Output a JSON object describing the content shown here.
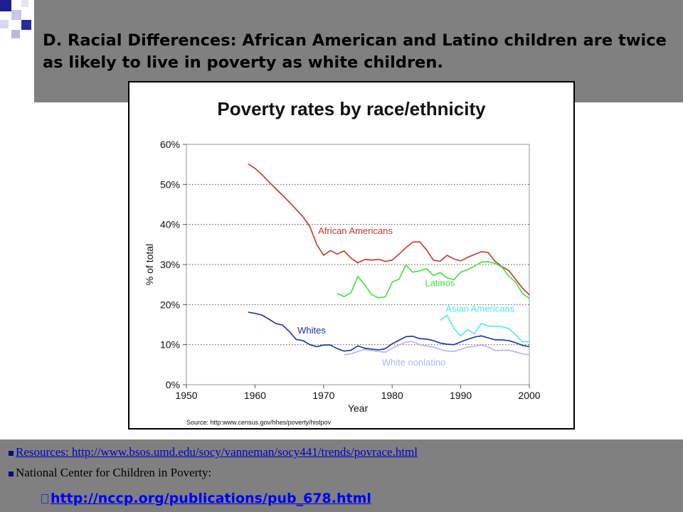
{
  "slide": {
    "title": "D.  Racial Differences: African American and Latino children are twice as likely to live in poverty as white children.",
    "bullets": [
      {
        "text": "Resources:  http://www.bsos.umd.edu/socy/vanneman/socy441/trends/povrace.html"
      },
      {
        "text": "National Center for Children in Poverty:"
      }
    ],
    "sub_bullet": {
      "text": "http://nccp.org/publications/pub_678.html"
    }
  },
  "colors": {
    "header_band": "#808080",
    "african_americans": "#c0392b",
    "latinos": "#44dd44",
    "asian_americans": "#55e6e6",
    "whites": "#1f2fa0",
    "white_nonlatino": "#b4b4ee",
    "link": "#0000ee"
  },
  "chart_data": {
    "type": "line",
    "title": "Poverty rates by race/ethnicity",
    "xlabel": "Year",
    "ylabel": "% of total",
    "source": "Source:  http:www.census.gov/hhes/poverty/histpov",
    "xlim": [
      1950,
      2000
    ],
    "ylim": [
      0,
      60
    ],
    "x_ticks": [
      1950,
      1960,
      1970,
      1980,
      1990,
      2000
    ],
    "y_ticks": [
      0,
      10,
      20,
      30,
      40,
      50,
      60
    ],
    "y_tick_labels": [
      "0%",
      "10%",
      "20%",
      "30%",
      "40%",
      "50%",
      "60%"
    ],
    "grid": "horizontal dotted",
    "series": [
      {
        "name": "African Americans",
        "color": "#c0392b",
        "x": [
          1959,
          1960,
          1961,
          1962,
          1963,
          1964,
          1965,
          1966,
          1967,
          1968,
          1969,
          1970,
          1971,
          1972,
          1973,
          1974,
          1975,
          1976,
          1977,
          1978,
          1979,
          1980,
          1981,
          1982,
          1983,
          1984,
          1985,
          1986,
          1987,
          1988,
          1989,
          1990,
          1991,
          1992,
          1993,
          1994,
          1995,
          1996,
          1997,
          1998,
          1999,
          2000
        ],
        "y": [
          55.1,
          54.0,
          52.5,
          50.7,
          49.0,
          47.3,
          45.6,
          43.8,
          41.9,
          39.5,
          35.0,
          32.3,
          33.5,
          32.6,
          33.4,
          31.6,
          30.4,
          31.3,
          31.1,
          31.3,
          30.8,
          31.1,
          32.6,
          34.2,
          35.6,
          35.7,
          33.7,
          31.1,
          30.8,
          32.3,
          31.4,
          30.9,
          31.8,
          32.5,
          33.2,
          33.0,
          30.8,
          29.5,
          28.5,
          26.3,
          24.1,
          22.4
        ]
      },
      {
        "name": "Latinos",
        "color": "#44dd44",
        "x": [
          1972,
          1973,
          1974,
          1975,
          1976,
          1977,
          1978,
          1979,
          1980,
          1981,
          1982,
          1983,
          1984,
          1985,
          1986,
          1987,
          1988,
          1989,
          1990,
          1991,
          1992,
          1993,
          1994,
          1995,
          1996,
          1997,
          1998,
          1999,
          2000
        ],
        "y": [
          22.8,
          22.0,
          23.0,
          27.0,
          25.0,
          22.5,
          21.7,
          21.9,
          25.6,
          26.3,
          29.9,
          28.1,
          28.4,
          29.0,
          27.3,
          28.0,
          26.7,
          26.2,
          28.1,
          28.7,
          29.6,
          30.6,
          30.7,
          30.3,
          29.4,
          27.1,
          25.6,
          22.8,
          21.5
        ]
      },
      {
        "name": "Asian Americans",
        "color": "#55e6e6",
        "x": [
          1987,
          1988,
          1989,
          1990,
          1991,
          1992,
          1993,
          1994,
          1995,
          1996,
          1997,
          1998,
          1999,
          2000
        ],
        "y": [
          16.1,
          17.3,
          14.1,
          12.2,
          13.8,
          12.7,
          15.3,
          14.6,
          14.6,
          14.5,
          14.0,
          12.5,
          10.7,
          10.8
        ]
      },
      {
        "name": "Whites",
        "color": "#1f2fa0",
        "x": [
          1959,
          1960,
          1961,
          1962,
          1963,
          1964,
          1965,
          1966,
          1967,
          1968,
          1969,
          1970,
          1971,
          1972,
          1973,
          1974,
          1975,
          1976,
          1977,
          1978,
          1979,
          1980,
          1981,
          1982,
          1983,
          1984,
          1985,
          1986,
          1987,
          1988,
          1989,
          1990,
          1991,
          1992,
          1993,
          1994,
          1995,
          1996,
          1997,
          1998,
          1999,
          2000
        ],
        "y": [
          18.1,
          17.8,
          17.4,
          16.4,
          15.3,
          14.9,
          13.3,
          11.3,
          11.0,
          10.0,
          9.5,
          9.9,
          9.9,
          9.0,
          8.4,
          8.6,
          9.7,
          9.1,
          8.9,
          8.7,
          9.0,
          10.2,
          11.1,
          12.0,
          12.1,
          11.5,
          11.4,
          11.0,
          10.4,
          10.1,
          10.0,
          10.7,
          11.3,
          11.9,
          12.2,
          11.7,
          11.2,
          11.2,
          11.0,
          10.5,
          9.8,
          9.5
        ]
      },
      {
        "name": "White nonlatino",
        "color": "#b4b4ee",
        "x": [
          1973,
          1974,
          1975,
          1976,
          1977,
          1978,
          1979,
          1980,
          1981,
          1982,
          1983,
          1984,
          1985,
          1986,
          1987,
          1988,
          1989,
          1990,
          1991,
          1992,
          1993,
          1994,
          1995,
          1996,
          1997,
          1998,
          1999,
          2000
        ],
        "y": [
          7.5,
          7.7,
          8.3,
          8.8,
          8.5,
          8.3,
          8.1,
          9.1,
          9.9,
          10.6,
          10.8,
          10.0,
          9.7,
          9.4,
          8.8,
          8.4,
          8.3,
          8.8,
          9.4,
          9.6,
          9.9,
          9.4,
          8.5,
          8.6,
          8.6,
          8.2,
          7.7,
          7.5
        ]
      }
    ],
    "series_labels": [
      {
        "text": "African Americans",
        "x": 1969.2,
        "y": 37.6
      },
      {
        "text": "Latinos",
        "x": 1984.8,
        "y": 24.6
      },
      {
        "text": "Asian Americans",
        "x": 1987.8,
        "y": 18.2
      },
      {
        "text": "Whites",
        "x": 1966.2,
        "y": 12.8
      },
      {
        "text": "White nonlatino",
        "x": 1978.5,
        "y": 4.8
      }
    ]
  }
}
